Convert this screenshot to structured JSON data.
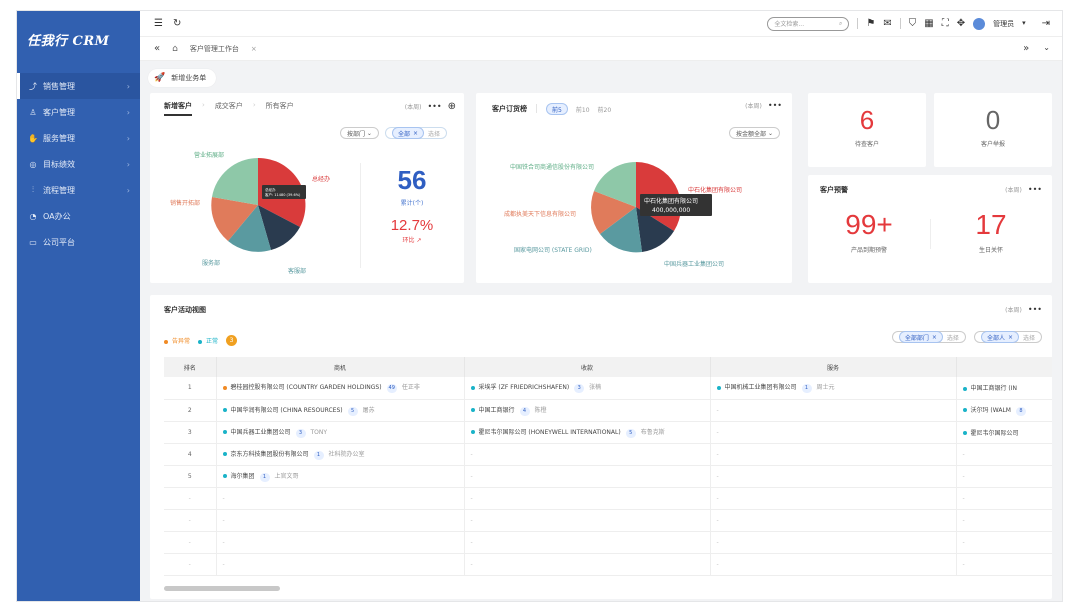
{
  "app": {
    "logo": "任我行 CRM"
  },
  "sidebar": {
    "items": [
      {
        "label": "销售管理",
        "icon": "trend-icon",
        "active": true
      },
      {
        "label": "客户管理",
        "icon": "user-icon"
      },
      {
        "label": "服务管理",
        "icon": "thumb-icon"
      },
      {
        "label": "目标绩效",
        "icon": "target-icon"
      },
      {
        "label": "流程管理",
        "icon": "flow-icon"
      },
      {
        "label": "OA办公",
        "icon": "oa-icon"
      },
      {
        "label": "公司平台",
        "icon": "monitor-icon"
      }
    ]
  },
  "header": {
    "search_placeholder": "全文检索...",
    "user_name": "管理员"
  },
  "tabs": {
    "current": "客户管理工作台"
  },
  "quick": {
    "label": "新增业务单"
  },
  "new_customers": {
    "tabs": [
      "新增客户",
      "成交客户",
      "所有客户"
    ],
    "period": "(本周)",
    "filter_dept": "按部门",
    "filter_tag": "全部",
    "filter_select": "选择",
    "pie_labels": [
      "营业拓展部",
      "总经办",
      "销售开拓部",
      "服务部",
      "客服部"
    ],
    "tooltip_l1": "总经办",
    "tooltip_l2": "客户: 11480 (39.6%)",
    "total": "56",
    "total_label": "累计(个)",
    "ratio": "12.7%",
    "ratio_label": "环比"
  },
  "customer_contract": {
    "title": "客户订货榜",
    "tabs": [
      "前5",
      "前10",
      "前20"
    ],
    "period": "(本周)",
    "filter": "按金额全部",
    "pie_labels": [
      "中国铁合司商通信股份有限公司",
      "中石化集团有限公司",
      "成都执美天下信息有限公司",
      "国家电网公司 (STATE GRID)",
      "中国兵器工业集团公司"
    ],
    "tooltip_l1": "中石化集团有限公司",
    "tooltip_l2": "400,000,000"
  },
  "stats": {
    "pending": {
      "value": "6",
      "label": "待查客户"
    },
    "report": {
      "value": "0",
      "label": "客户举报"
    }
  },
  "warning": {
    "title": "客户预警",
    "period": "(本周)",
    "expire": {
      "value": "99+",
      "label": "产品到期预警"
    },
    "birthday": {
      "value": "17",
      "label": "生日关怀"
    }
  },
  "activity": {
    "title": "客户活动视图",
    "period": "(本周)",
    "legend": [
      {
        "label": "告异常",
        "color": "#f08a24"
      },
      {
        "label": "正常",
        "color": "#1ab3c8"
      }
    ],
    "legend_badge": "3",
    "filter_dept": "全部部门",
    "filter_person": "全部人",
    "filter_select": "选择",
    "columns": [
      "排名",
      "商机",
      "收款",
      "服务",
      "订单"
    ],
    "rows": [
      {
        "rank": "1",
        "biz": {
          "name": "碧桂园控股有限公司 (COUNTRY GARDEN HOLDINGS)",
          "count": "49",
          "owner": "任正非",
          "color": "#f08a24"
        },
        "pay": {
          "name": "采埃孚 (ZF FRIEDRICHSHAFEN)",
          "count": "3",
          "owner": "张楠",
          "color": "#1ab3c8"
        },
        "svc": {
          "name": "中国机械工业集团有限公司",
          "count": "1",
          "owner": "周士元",
          "color": "#1ab3c8"
        },
        "order": {
          "name": "中国工商银行 (IN",
          "color": "#1ab3c8"
        }
      },
      {
        "rank": "2",
        "biz": {
          "name": "中国华润有限公司 (CHINA RESOURCES)",
          "count": "5",
          "owner": "屠苏",
          "color": "#1ab3c8"
        },
        "pay": {
          "name": "中国工商银行",
          "count": "4",
          "owner": "陈橙",
          "color": "#1ab3c8"
        },
        "svc": null,
        "order": {
          "name": "沃尔玛 (WALM",
          "count": "8",
          "color": "#1ab3c8"
        }
      },
      {
        "rank": "3",
        "biz": {
          "name": "中国兵器工业集团公司",
          "count": "3",
          "owner": "TONY",
          "color": "#1ab3c8"
        },
        "pay": {
          "name": "霍尼韦尔国际公司 (HONEYWELL INTERNATIONAL)",
          "count": "5",
          "owner": "布鲁克斯",
          "color": "#1ab3c8"
        },
        "svc": null,
        "order": {
          "name": "霍尼韦尔国际公司",
          "color": "#1ab3c8"
        }
      },
      {
        "rank": "4",
        "biz": {
          "name": "京东方科技集团股份有限公司",
          "count": "1",
          "owner": "社科院办公室",
          "color": "#1ab3c8"
        },
        "pay": null,
        "svc": null,
        "order": null
      },
      {
        "rank": "5",
        "biz": {
          "name": "海尔集团",
          "count": "1",
          "owner": "上官文哥",
          "color": "#1ab3c8"
        },
        "pay": null,
        "svc": null,
        "order": null
      },
      {
        "rank": "",
        "biz": null,
        "pay": null,
        "svc": null,
        "order": null
      },
      {
        "rank": "",
        "biz": null,
        "pay": null,
        "svc": null,
        "order": null
      },
      {
        "rank": "",
        "biz": null,
        "pay": null,
        "svc": null,
        "order": null
      },
      {
        "rank": "",
        "biz": null,
        "pay": null,
        "svc": null,
        "order": null
      }
    ],
    "empty": "-"
  },
  "colors": {
    "primary": "#3160b0",
    "accent": "#2f5ec2",
    "red": "#e4393c"
  }
}
